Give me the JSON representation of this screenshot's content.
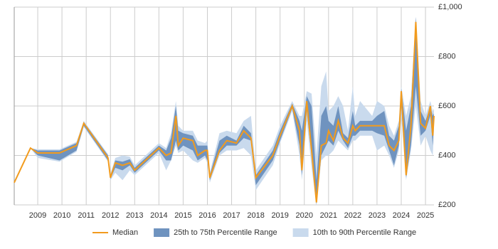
{
  "chart_data": {
    "type": "range-line",
    "x": [
      2008.03,
      2008.7,
      2009.0,
      2009.9,
      2010.6,
      2010.9,
      2011.9,
      2012.0,
      2012.2,
      2012.5,
      2012.8,
      2013.0,
      2014.0,
      2014.3,
      2014.5,
      2014.7,
      2014.8,
      2015.0,
      2015.4,
      2015.6,
      2015.9,
      2016.0,
      2016.1,
      2016.5,
      2016.8,
      2017.2,
      2017.5,
      2017.8,
      2018.0,
      2018.7,
      2019.0,
      2019.5,
      2019.8,
      2019.9,
      2020.1,
      2020.3,
      2020.5,
      2020.7,
      2020.9,
      2021.0,
      2021.2,
      2021.4,
      2021.6,
      2021.8,
      2022.0,
      2022.1,
      2022.3,
      2022.8,
      2023.0,
      2023.3,
      2023.5,
      2023.7,
      2023.9,
      2024.0,
      2024.2,
      2024.4,
      2024.6,
      2024.8,
      2025.0,
      2025.2,
      2025.3,
      2025.35
    ],
    "series": [
      {
        "name": "Median",
        "color": "#f29b1d",
        "values": [
          290,
          430,
          410,
          410,
          440,
          530,
          390,
          310,
          370,
          360,
          370,
          340,
          430,
          400,
          410,
          560,
          440,
          470,
          460,
          400,
          420,
          420,
          310,
          420,
          460,
          450,
          500,
          470,
          310,
          400,
          480,
          600,
          500,
          340,
          620,
          420,
          210,
          440,
          450,
          500,
          460,
          540,
          470,
          450,
          520,
          500,
          520,
          520,
          520,
          520,
          440,
          420,
          460,
          660,
          320,
          520,
          940,
          530,
          510,
          600,
          480,
          560
        ]
      }
    ],
    "bands": [
      {
        "name": "10th to 90th Percentile Range",
        "color": "#c9daed",
        "lower": [
          290,
          430,
          390,
          375,
          415,
          515,
          375,
          300,
          330,
          300,
          340,
          320,
          410,
          340,
          380,
          440,
          410,
          420,
          380,
          370,
          390,
          370,
          290,
          400,
          420,
          420,
          430,
          400,
          260,
          360,
          450,
          580,
          400,
          300,
          540,
          350,
          200,
          380,
          400,
          400,
          420,
          460,
          440,
          420,
          460,
          460,
          480,
          480,
          420,
          440,
          400,
          350,
          420,
          560,
          300,
          420,
          600,
          440,
          480,
          420,
          400,
          500
        ],
        "upper": [
          290,
          430,
          425,
          425,
          455,
          540,
          405,
          325,
          390,
          400,
          395,
          360,
          450,
          430,
          490,
          620,
          520,
          500,
          500,
          460,
          450,
          460,
          330,
          490,
          500,
          490,
          540,
          560,
          340,
          440,
          520,
          620,
          560,
          560,
          660,
          650,
          400,
          680,
          740,
          580,
          600,
          640,
          600,
          500,
          680,
          560,
          620,
          560,
          620,
          600,
          520,
          480,
          540,
          680,
          560,
          640,
          960,
          620,
          560,
          620,
          580,
          590
        ]
      },
      {
        "name": "25th to 75th Percentile Range",
        "color": "#6f93bf",
        "lower": [
          290,
          430,
          400,
          380,
          420,
          520,
          380,
          305,
          350,
          340,
          360,
          330,
          420,
          380,
          380,
          460,
          420,
          440,
          420,
          380,
          400,
          380,
          300,
          410,
          440,
          440,
          470,
          460,
          280,
          380,
          460,
          590,
          440,
          320,
          580,
          400,
          200,
          400,
          440,
          460,
          440,
          500,
          460,
          430,
          480,
          480,
          500,
          500,
          490,
          480,
          420,
          360,
          440,
          600,
          310,
          440,
          680,
          480,
          500,
          560,
          440,
          540
        ],
        "upper": [
          290,
          430,
          420,
          420,
          450,
          535,
          400,
          320,
          380,
          375,
          385,
          350,
          440,
          420,
          470,
          600,
          500,
          490,
          480,
          440,
          440,
          440,
          320,
          460,
          480,
          460,
          520,
          490,
          320,
          420,
          500,
          610,
          540,
          500,
          640,
          600,
          300,
          560,
          600,
          540,
          520,
          600,
          490,
          470,
          580,
          520,
          540,
          540,
          560,
          580,
          480,
          460,
          520,
          670,
          500,
          600,
          960,
          580,
          540,
          600,
          560,
          570
        ]
      }
    ],
    "xlim": [
      2008.03,
      2025.35
    ],
    "ylim": [
      200,
      1000
    ],
    "xticks": [
      2009,
      2010,
      2011,
      2012,
      2013,
      2014,
      2015,
      2016,
      2017,
      2018,
      2019,
      2020,
      2021,
      2022,
      2023,
      2024,
      2025
    ],
    "yticks": [
      {
        "value": 200,
        "label": "£200"
      },
      {
        "value": 400,
        "label": "£400"
      },
      {
        "value": 600,
        "label": "£600"
      },
      {
        "value": 800,
        "label": "£800"
      },
      {
        "value": 1000,
        "label": "£1,000"
      }
    ],
    "grid": true
  }
}
